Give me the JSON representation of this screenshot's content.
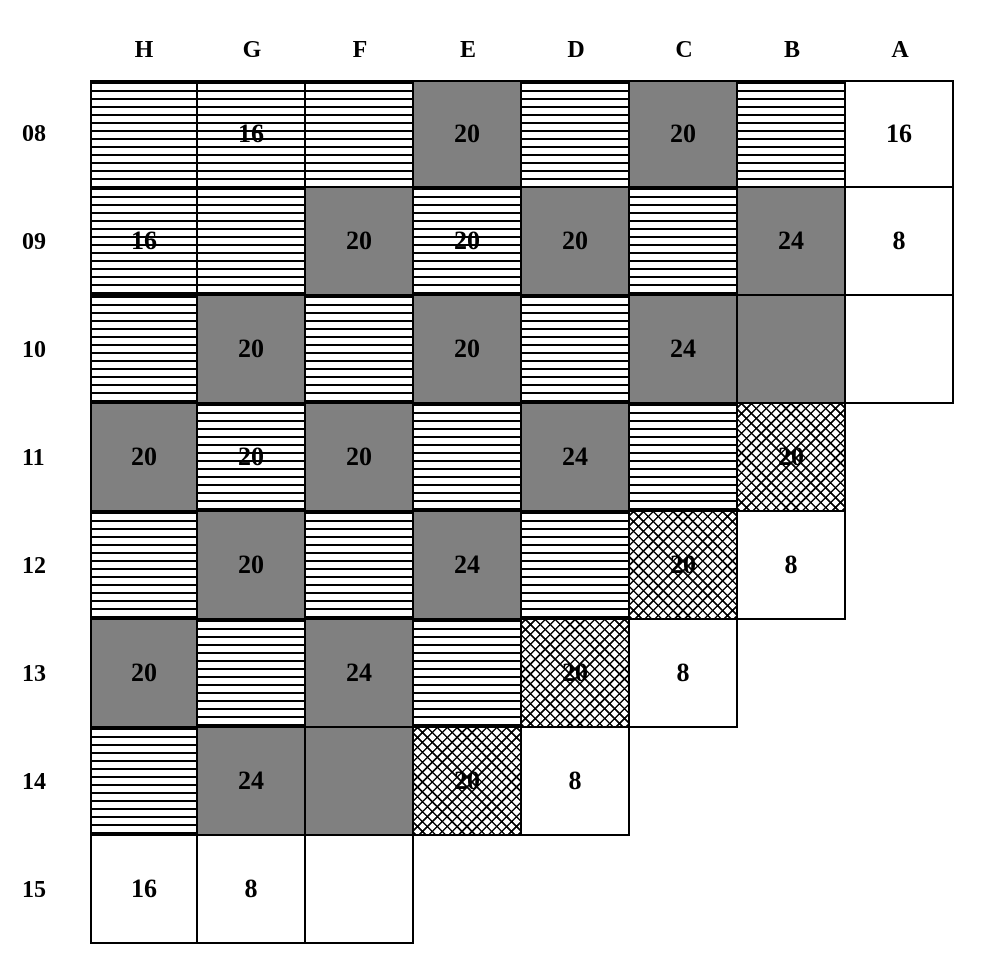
{
  "chart": {
    "type": "grid-diagram",
    "cell_size": 108,
    "row_header_width": 70,
    "col_header_height": 60,
    "border_color": "#000000",
    "border_width": 2,
    "background_color": "#ffffff",
    "header_fontsize": 24,
    "cell_fontsize": 26,
    "font_family": "Times New Roman",
    "colors": {
      "gray": "#808080",
      "white": "#ffffff",
      "stripe_line": "#000000",
      "cross_line": "#000000"
    },
    "columns": [
      "H",
      "G",
      "F",
      "E",
      "D",
      "C",
      "B",
      "A"
    ],
    "rows": [
      "08",
      "09",
      "10",
      "11",
      "12",
      "13",
      "14",
      "15"
    ],
    "cells": [
      [
        {
          "fill": "stripe",
          "value": ""
        },
        {
          "fill": "stripe",
          "value": "16"
        },
        {
          "fill": "stripe",
          "value": ""
        },
        {
          "fill": "gray",
          "value": "20"
        },
        {
          "fill": "stripe",
          "value": ""
        },
        {
          "fill": "gray",
          "value": "20"
        },
        {
          "fill": "stripe",
          "value": ""
        },
        {
          "fill": "white",
          "value": "16"
        }
      ],
      [
        {
          "fill": "stripe",
          "value": "16"
        },
        {
          "fill": "stripe",
          "value": ""
        },
        {
          "fill": "gray",
          "value": "20"
        },
        {
          "fill": "stripe",
          "value": "20"
        },
        {
          "fill": "gray",
          "value": "20"
        },
        {
          "fill": "stripe",
          "value": ""
        },
        {
          "fill": "gray",
          "value": "24"
        },
        {
          "fill": "white",
          "value": "8"
        }
      ],
      [
        {
          "fill": "stripe",
          "value": ""
        },
        {
          "fill": "gray",
          "value": "20"
        },
        {
          "fill": "stripe",
          "value": ""
        },
        {
          "fill": "gray",
          "value": "20"
        },
        {
          "fill": "stripe",
          "value": ""
        },
        {
          "fill": "gray",
          "value": "24"
        },
        {
          "fill": "gray",
          "value": ""
        },
        {
          "fill": "white",
          "value": ""
        }
      ],
      [
        {
          "fill": "gray",
          "value": "20"
        },
        {
          "fill": "stripe",
          "value": "20"
        },
        {
          "fill": "gray",
          "value": "20"
        },
        {
          "fill": "stripe",
          "value": ""
        },
        {
          "fill": "gray",
          "value": "24"
        },
        {
          "fill": "stripe",
          "value": ""
        },
        {
          "fill": "cross",
          "value": "20"
        },
        {
          "fill": "empty",
          "value": ""
        }
      ],
      [
        {
          "fill": "stripe",
          "value": ""
        },
        {
          "fill": "gray",
          "value": "20"
        },
        {
          "fill": "stripe",
          "value": ""
        },
        {
          "fill": "gray",
          "value": "24"
        },
        {
          "fill": "stripe",
          "value": ""
        },
        {
          "fill": "cross",
          "value": "20"
        },
        {
          "fill": "white",
          "value": "8"
        },
        {
          "fill": "empty",
          "value": ""
        }
      ],
      [
        {
          "fill": "gray",
          "value": "20"
        },
        {
          "fill": "stripe",
          "value": ""
        },
        {
          "fill": "gray",
          "value": "24"
        },
        {
          "fill": "stripe",
          "value": ""
        },
        {
          "fill": "cross",
          "value": "20"
        },
        {
          "fill": "white",
          "value": "8"
        },
        {
          "fill": "empty",
          "value": ""
        },
        {
          "fill": "empty",
          "value": ""
        }
      ],
      [
        {
          "fill": "stripe",
          "value": ""
        },
        {
          "fill": "gray",
          "value": "24"
        },
        {
          "fill": "gray",
          "value": ""
        },
        {
          "fill": "cross",
          "value": "20"
        },
        {
          "fill": "white",
          "value": "8"
        },
        {
          "fill": "empty",
          "value": ""
        },
        {
          "fill": "empty",
          "value": ""
        },
        {
          "fill": "empty",
          "value": ""
        }
      ],
      [
        {
          "fill": "white",
          "value": "16"
        },
        {
          "fill": "white",
          "value": "8"
        },
        {
          "fill": "white",
          "value": ""
        },
        {
          "fill": "empty",
          "value": ""
        },
        {
          "fill": "empty",
          "value": ""
        },
        {
          "fill": "empty",
          "value": ""
        },
        {
          "fill": "empty",
          "value": ""
        },
        {
          "fill": "empty",
          "value": ""
        }
      ]
    ]
  }
}
